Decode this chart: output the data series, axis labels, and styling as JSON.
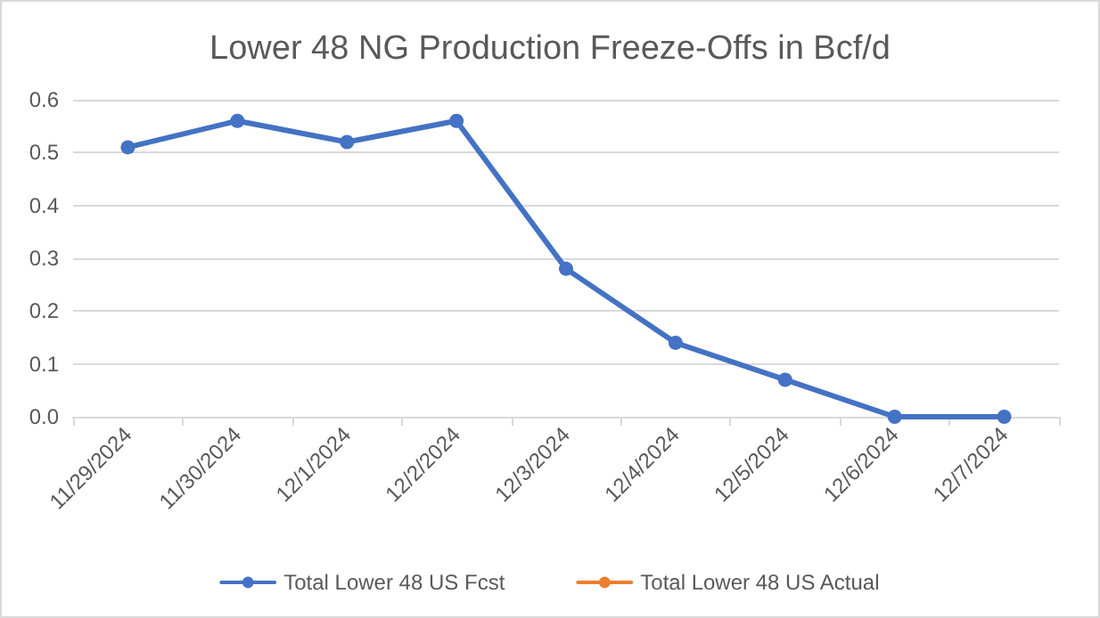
{
  "chart_data": {
    "type": "line",
    "title": "Lower 48 NG Production Freeze-Offs in Bcf/d",
    "categories": [
      "11/29/2024",
      "11/30/2024",
      "12/1/2024",
      "12/2/2024",
      "12/3/2024",
      "12/4/2024",
      "12/5/2024",
      "12/6/2024",
      "12/7/2024"
    ],
    "series": [
      {
        "name": "Total Lower 48 US Fcst",
        "color": "#4472c4",
        "values": [
          0.51,
          0.56,
          0.52,
          0.56,
          0.28,
          0.14,
          0.07,
          0.0,
          0.0
        ]
      },
      {
        "name": "Total Lower 48 US Actual",
        "color": "#ed7d31",
        "values": [
          null,
          null,
          null,
          null,
          null,
          null,
          null,
          null,
          null
        ]
      }
    ],
    "ylim": [
      0,
      0.6
    ],
    "yticks": [
      {
        "value": 0,
        "label": "0.0"
      },
      0.1,
      0.2,
      0.3,
      0.4,
      0.5,
      0.6
    ],
    "grid": "y",
    "legend": "bottom",
    "marker": "circle",
    "line_style": "solid"
  }
}
